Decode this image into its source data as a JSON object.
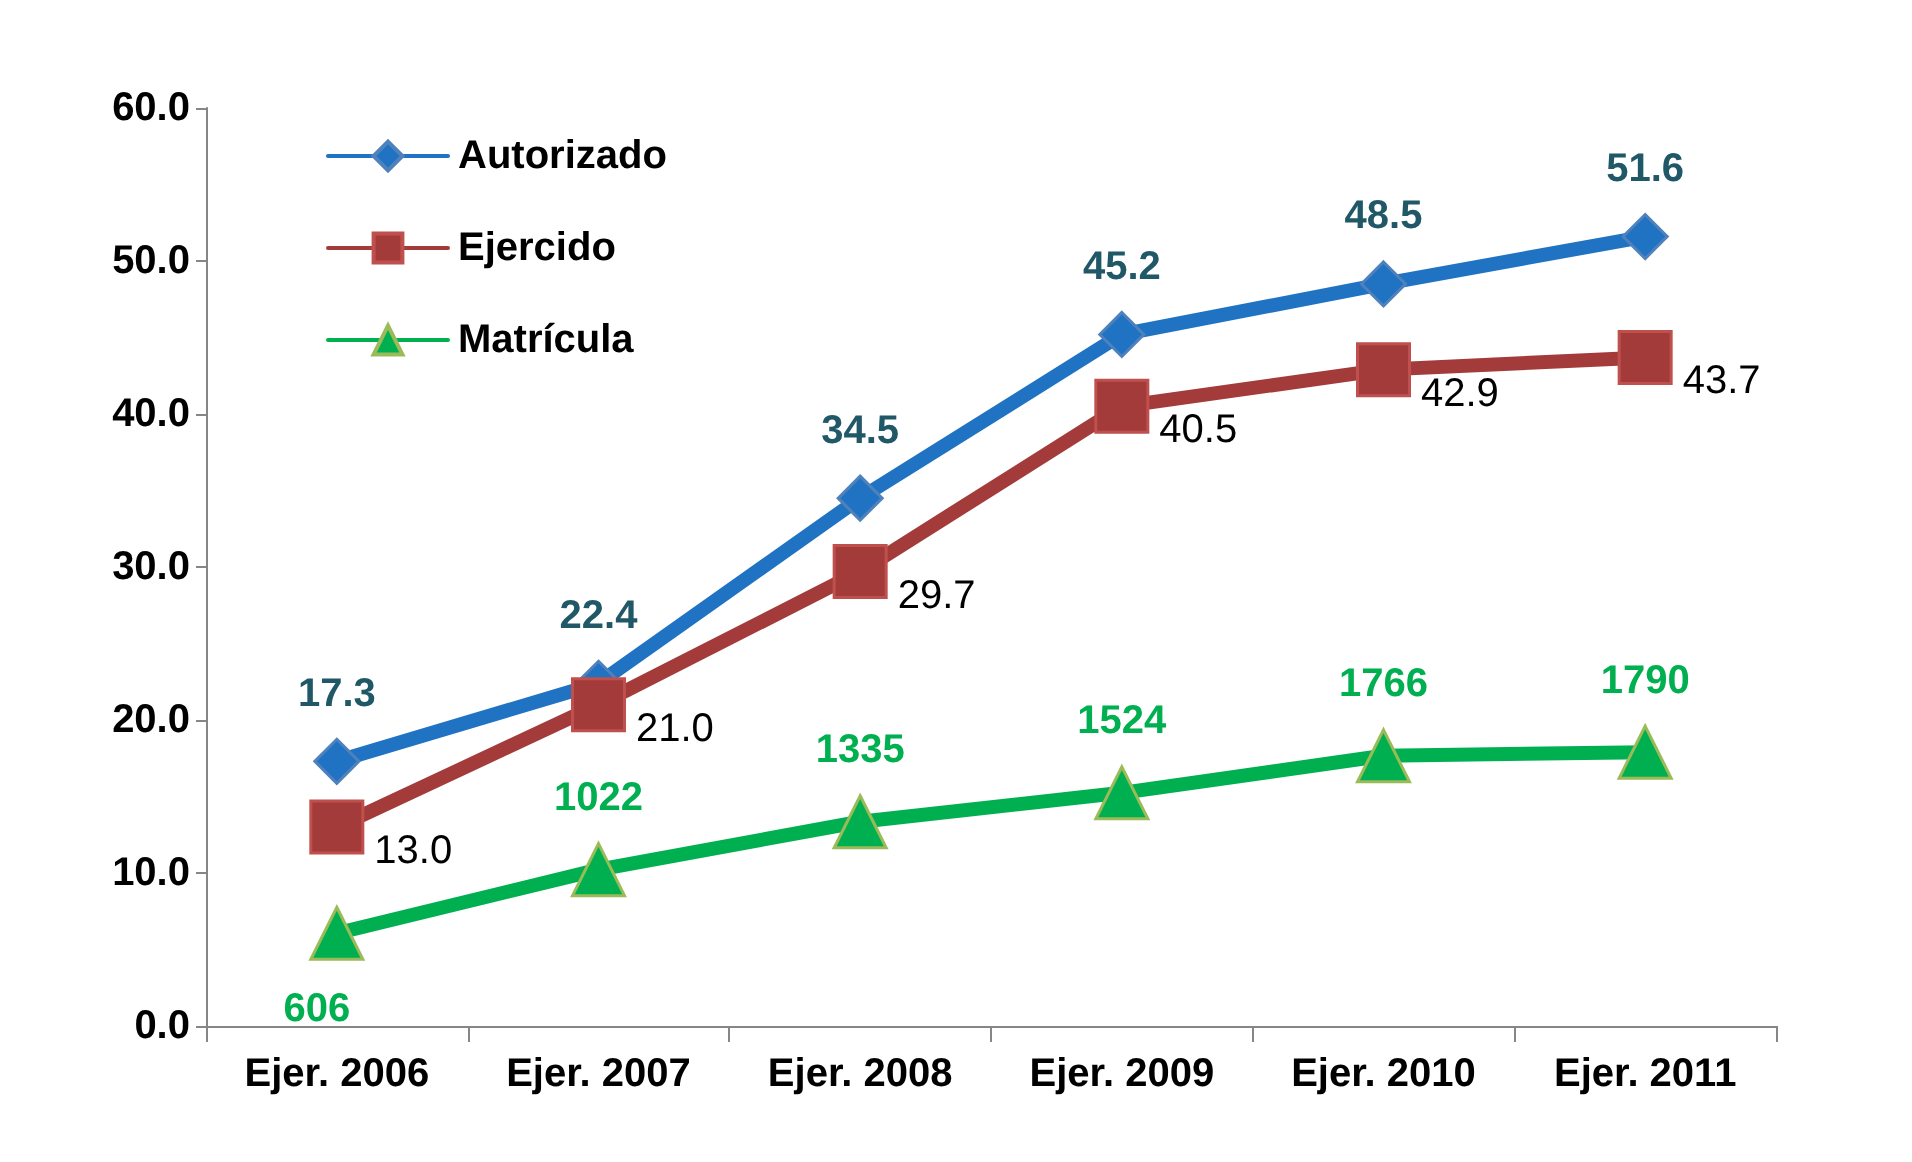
{
  "chart_data": {
    "type": "line",
    "categories": [
      "Ejer. 2006",
      "Ejer. 2007",
      "Ejer. 2008",
      "Ejer. 2009",
      "Ejer. 2010",
      "Ejer. 2011"
    ],
    "series": [
      {
        "name": "Autorizado",
        "color": "#1f73c2",
        "marker": "diamond",
        "values": [
          17.3,
          22.4,
          34.5,
          45.2,
          48.5,
          51.6
        ],
        "value_labels": [
          "17.3",
          "22.4",
          "34.5",
          "45.2",
          "48.5",
          "51.6"
        ]
      },
      {
        "name": "Ejercido",
        "color": "#a33b3b",
        "marker": "square",
        "values": [
          13.0,
          21.0,
          29.7,
          40.5,
          42.9,
          43.7
        ],
        "value_labels": [
          "13.0",
          "21.0",
          "29.7",
          "40.5",
          "42.9",
          "43.7"
        ]
      },
      {
        "name": "Matrícula",
        "color": "#00b050",
        "marker": "triangle",
        "axis": "y2",
        "values": [
          606,
          1022,
          1335,
          1524,
          1766,
          1790
        ],
        "value_labels": [
          "606",
          "1022",
          "1335",
          "1524",
          "1766",
          "1790"
        ]
      }
    ],
    "ylim": [
      0,
      60
    ],
    "yticks": [
      {
        "value": 0,
        "label": "0.0"
      },
      {
        "value": 10,
        "label": "10.0"
      },
      {
        "value": 20,
        "label": "20.0"
      },
      {
        "value": 30,
        "label": "30.0"
      },
      {
        "value": 40,
        "label": "40.0"
      },
      {
        "value": 50,
        "label": "50.0"
      },
      {
        "value": 60,
        "label": "60.0"
      }
    ],
    "y2lim": [
      0,
      6000
    ],
    "grid": false,
    "legend": "top left",
    "line_style": "solid"
  }
}
